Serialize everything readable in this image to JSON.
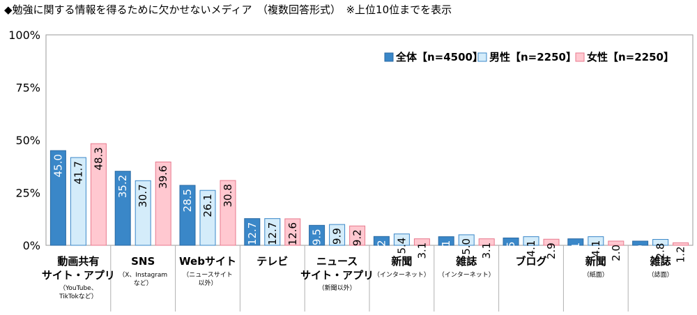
{
  "chart_data": {
    "type": "bar",
    "title": "◆勉強に関する情報を得るために欠かせないメディア　（複数回答形式）　※上位10位までを表示",
    "ylim": [
      0,
      100
    ],
    "yticks": [
      "0%",
      "25%",
      "50%",
      "75%",
      "100%"
    ],
    "grid": false,
    "legend_position": "top-right",
    "categories": [
      {
        "label": [
          "動画共有",
          "サイト・アプリ"
        ],
        "note": [
          "（YouTube、",
          "TikTokなど）"
        ]
      },
      {
        "label": [
          "SNS"
        ],
        "note": [
          "（X、Instagram",
          "など）"
        ]
      },
      {
        "label": [
          "Webサイト"
        ],
        "note": [
          "（ニュースサイト",
          "以外）"
        ]
      },
      {
        "label": [
          "テレビ"
        ],
        "note": []
      },
      {
        "label": [
          "ニュース",
          "サイト・アプリ"
        ],
        "note": [
          "（新聞以外）"
        ]
      },
      {
        "label": [
          "新聞"
        ],
        "note": [
          "（インターネット）"
        ]
      },
      {
        "label": [
          "雑誌"
        ],
        "note": [
          "（インターネット）"
        ]
      },
      {
        "label": [
          "ブログ"
        ],
        "note": []
      },
      {
        "label": [
          "新聞"
        ],
        "note": [
          "（紙面）"
        ]
      },
      {
        "label": [
          "雑誌"
        ],
        "note": [
          "（誌面）"
        ]
      }
    ],
    "series": [
      {
        "name": "全体【n=4500】",
        "values": [
          45.0,
          35.2,
          28.5,
          12.7,
          9.5,
          4.2,
          4.1,
          3.5,
          3.1,
          2.0
        ]
      },
      {
        "name": "男性【n=2250】",
        "values": [
          41.7,
          30.7,
          26.1,
          12.7,
          9.9,
          5.4,
          5.0,
          4.1,
          4.1,
          2.8
        ]
      },
      {
        "name": "女性【n=2250】",
        "values": [
          48.3,
          39.6,
          30.8,
          12.6,
          9.2,
          3.1,
          3.1,
          2.9,
          2.0,
          1.2
        ]
      }
    ],
    "colors": {
      "fills": [
        "#3a87c8",
        "#d4ecfa",
        "#ffc8d0"
      ],
      "strokes": [
        "#2a6aa3",
        "#3a87c8",
        "#e87a8e"
      ],
      "value_text": [
        "#ffffff",
        "#000000",
        "#000000"
      ]
    }
  }
}
